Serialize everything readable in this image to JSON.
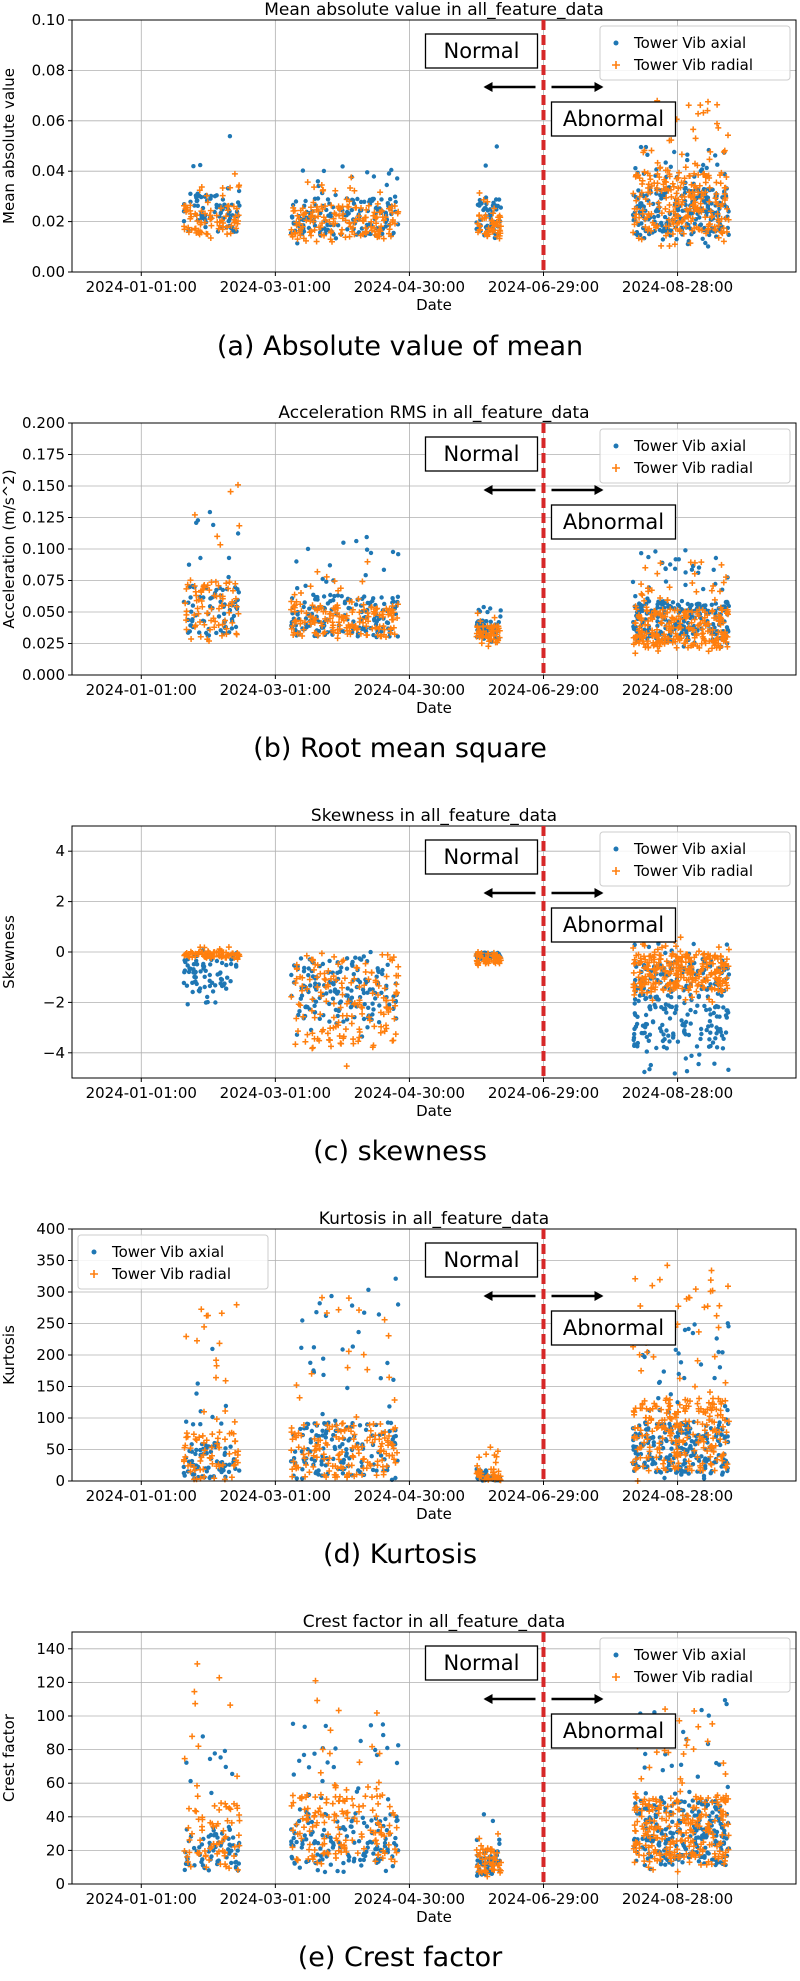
{
  "colors": {
    "axial": "#1f77b4",
    "radial": "#ff7f0e",
    "divider": "#d62728"
  },
  "chart_data": [
    {
      "type": "scatter",
      "title": "Mean absolute value in all_feature_data",
      "xlabel": "Date",
      "ylabel": "Mean absolute value",
      "caption": "(a) Absolute value of mean",
      "ylim": [
        0,
        0.1
      ],
      "yticks": [
        "0.00",
        "0.02",
        "0.04",
        "0.06",
        "0.08",
        "0.10"
      ],
      "ytick_values": [
        0,
        0.02,
        0.04,
        0.06,
        0.08,
        0.1
      ],
      "xlim": [
        "2023-12-01",
        "2024-10-20"
      ],
      "xticks": [
        "2024-01-01:00",
        "2024-03-01:00",
        "2024-04-30:00",
        "2024-06-29:00",
        "2024-08-28:00"
      ],
      "divider_date": "2024-06-29",
      "annotations": {
        "normal": "Normal",
        "abnormal": "Abnormal"
      },
      "legend_position": "top-right",
      "clusters": [
        {
          "from": "2024-01-20",
          "to": "2024-02-14",
          "axial": [
            0.013,
            0.054,
            0.024
          ],
          "radial": [
            0.012,
            0.04,
            0.022
          ],
          "count": 80
        },
        {
          "from": "2024-03-08",
          "to": "2024-04-25",
          "axial": [
            0.011,
            0.043,
            0.025
          ],
          "radial": [
            0.011,
            0.04,
            0.022
          ],
          "count": 160
        },
        {
          "from": "2024-05-30",
          "to": "2024-06-10",
          "axial": [
            0.012,
            0.05,
            0.022
          ],
          "radial": [
            0.012,
            0.032,
            0.02
          ],
          "count": 50
        },
        {
          "from": "2024-08-08",
          "to": "2024-09-20",
          "axial": [
            0.01,
            0.05,
            0.028
          ],
          "radial": [
            0.01,
            0.068,
            0.03
          ],
          "count": 260
        }
      ],
      "series": [
        {
          "name": "Tower Vib axial"
        },
        {
          "name": "Tower Vib radial"
        }
      ],
      "grid": true
    },
    {
      "type": "scatter",
      "title": "Acceleration RMS in all_feature_data",
      "xlabel": "Date",
      "ylabel": "Acceleration (m/s^2)",
      "caption": "(b) Root mean square",
      "ylim": [
        0,
        0.2
      ],
      "yticks": [
        "0.000",
        "0.025",
        "0.050",
        "0.075",
        "0.100",
        "0.125",
        "0.150",
        "0.175",
        "0.200"
      ],
      "ytick_values": [
        0,
        0.025,
        0.05,
        0.075,
        0.1,
        0.125,
        0.15,
        0.175,
        0.2
      ],
      "xlim": [
        "2023-12-01",
        "2024-10-20"
      ],
      "xticks": [
        "2024-01-01:00",
        "2024-03-01:00",
        "2024-04-30:00",
        "2024-06-29:00",
        "2024-08-28:00"
      ],
      "divider_date": "2024-06-29",
      "annotations": {
        "normal": "Normal",
        "abnormal": "Abnormal"
      },
      "legend_position": "top-right",
      "clusters": [
        {
          "from": "2024-01-20",
          "to": "2024-02-14",
          "axial": [
            0.025,
            0.133,
            0.05
          ],
          "radial": [
            0.022,
            0.156,
            0.048
          ],
          "count": 80
        },
        {
          "from": "2024-03-08",
          "to": "2024-04-25",
          "axial": [
            0.025,
            0.113,
            0.047
          ],
          "radial": [
            0.025,
            0.09,
            0.045
          ],
          "count": 160
        },
        {
          "from": "2024-05-30",
          "to": "2024-06-10",
          "axial": [
            0.025,
            0.055,
            0.04
          ],
          "radial": [
            0.022,
            0.05,
            0.035
          ],
          "count": 50
        },
        {
          "from": "2024-08-08",
          "to": "2024-09-20",
          "axial": [
            0.022,
            0.1,
            0.045
          ],
          "radial": [
            0.015,
            0.09,
            0.04
          ],
          "count": 260
        }
      ],
      "series": [
        {
          "name": "Tower Vib axial"
        },
        {
          "name": "Tower Vib radial"
        }
      ],
      "grid": true
    },
    {
      "type": "scatter",
      "title": "Skewness in all_feature_data",
      "xlabel": "Date",
      "ylabel": "Skewness",
      "caption": "(c) skewness",
      "ylim": [
        -5,
        5
      ],
      "yticks": [
        "−4",
        "−2",
        "0",
        "2",
        "4"
      ],
      "ytick_values": [
        -4,
        -2,
        0,
        2,
        4
      ],
      "xlim": [
        "2023-12-01",
        "2024-10-20"
      ],
      "xticks": [
        "2024-01-01:00",
        "2024-03-01:00",
        "2024-04-30:00",
        "2024-06-29:00",
        "2024-08-28:00"
      ],
      "divider_date": "2024-06-29",
      "annotations": {
        "normal": "Normal",
        "abnormal": "Abnormal"
      },
      "legend_position": "top-right",
      "clusters": [
        {
          "from": "2024-01-20",
          "to": "2024-02-14",
          "axial": [
            -2.1,
            0.3,
            -0.1
          ],
          "radial": [
            -0.3,
            0.2,
            -0.05
          ],
          "count": 80
        },
        {
          "from": "2024-03-08",
          "to": "2024-04-25",
          "axial": [
            -3.5,
            0.0,
            -0.3
          ],
          "radial": [
            -4.8,
            0.0,
            -0.3
          ],
          "count": 160
        },
        {
          "from": "2024-05-30",
          "to": "2024-06-10",
          "axial": [
            -0.3,
            0.0,
            -0.05
          ],
          "radial": [
            -0.6,
            0.0,
            -0.05
          ],
          "count": 50
        },
        {
          "from": "2024-08-08",
          "to": "2024-09-20",
          "axial": [
            -4.9,
            0.5,
            -0.6
          ],
          "radial": [
            -2.0,
            0.6,
            -0.3
          ],
          "count": 260
        }
      ],
      "series": [
        {
          "name": "Tower Vib axial"
        },
        {
          "name": "Tower Vib radial"
        }
      ],
      "grid": true
    },
    {
      "type": "scatter",
      "title": "Kurtosis in all_feature_data",
      "xlabel": "Date",
      "ylabel": "Kurtosis",
      "caption": "(d) Kurtosis",
      "ylim": [
        0,
        400
      ],
      "yticks": [
        "0",
        "50",
        "100",
        "150",
        "200",
        "250",
        "300",
        "350",
        "400"
      ],
      "ytick_values": [
        0,
        50,
        100,
        150,
        200,
        250,
        300,
        350,
        400
      ],
      "xlim": [
        "2023-12-01",
        "2024-10-20"
      ],
      "xticks": [
        "2024-01-01:00",
        "2024-03-01:00",
        "2024-04-30:00",
        "2024-06-29:00",
        "2024-08-28:00"
      ],
      "divider_date": "2024-06-29",
      "annotations": {
        "normal": "Normal",
        "abnormal": "Abnormal"
      },
      "legend_position": "top-left",
      "clusters": [
        {
          "from": "2024-01-20",
          "to": "2024-02-14",
          "axial": [
            0,
            228,
            5
          ],
          "radial": [
            0,
            282,
            10
          ],
          "count": 80
        },
        {
          "from": "2024-03-08",
          "to": "2024-04-25",
          "axial": [
            0,
            338,
            15
          ],
          "radial": [
            0,
            312,
            20
          ],
          "count": 160
        },
        {
          "from": "2024-05-30",
          "to": "2024-06-10",
          "axial": [
            0,
            20,
            3
          ],
          "radial": [
            0,
            60,
            5
          ],
          "count": 50
        },
        {
          "from": "2024-08-08",
          "to": "2024-09-20",
          "axial": [
            0,
            258,
            40
          ],
          "radial": [
            0,
            348,
            60
          ],
          "count": 260
        }
      ],
      "series": [
        {
          "name": "Tower Vib axial"
        },
        {
          "name": "Tower Vib radial"
        }
      ],
      "grid": true
    },
    {
      "type": "scatter",
      "title": "Crest factor in all_feature_data",
      "xlabel": "Date",
      "ylabel": "Crest factor",
      "caption": "(e) Crest factor",
      "ylim": [
        0,
        150
      ],
      "yticks": [
        "0",
        "20",
        "40",
        "60",
        "80",
        "100",
        "120",
        "140"
      ],
      "ytick_values": [
        0,
        20,
        40,
        60,
        80,
        100,
        120,
        140
      ],
      "xlim": [
        "2023-12-01",
        "2024-10-20"
      ],
      "xticks": [
        "2024-01-01:00",
        "2024-03-01:00",
        "2024-04-30:00",
        "2024-06-29:00",
        "2024-08-28:00"
      ],
      "divider_date": "2024-06-29",
      "annotations": {
        "normal": "Normal",
        "abnormal": "Abnormal"
      },
      "legend_position": "top-right",
      "clusters": [
        {
          "from": "2024-01-20",
          "to": "2024-02-14",
          "axial": [
            5,
            91,
            15
          ],
          "radial": [
            5,
            135,
            20
          ],
          "count": 80
        },
        {
          "from": "2024-03-08",
          "to": "2024-04-25",
          "axial": [
            5,
            96,
            25
          ],
          "radial": [
            5,
            124,
            30
          ],
          "count": 160
        },
        {
          "from": "2024-05-30",
          "to": "2024-06-10",
          "axial": [
            3,
            43,
            12
          ],
          "radial": [
            3,
            40,
            15
          ],
          "count": 50
        },
        {
          "from": "2024-08-08",
          "to": "2024-09-20",
          "axial": [
            5,
            110,
            30
          ],
          "radial": [
            5,
            105,
            35
          ],
          "count": 260
        }
      ],
      "series": [
        {
          "name": "Tower Vib axial"
        },
        {
          "name": "Tower Vib radial"
        }
      ],
      "grid": true
    }
  ]
}
